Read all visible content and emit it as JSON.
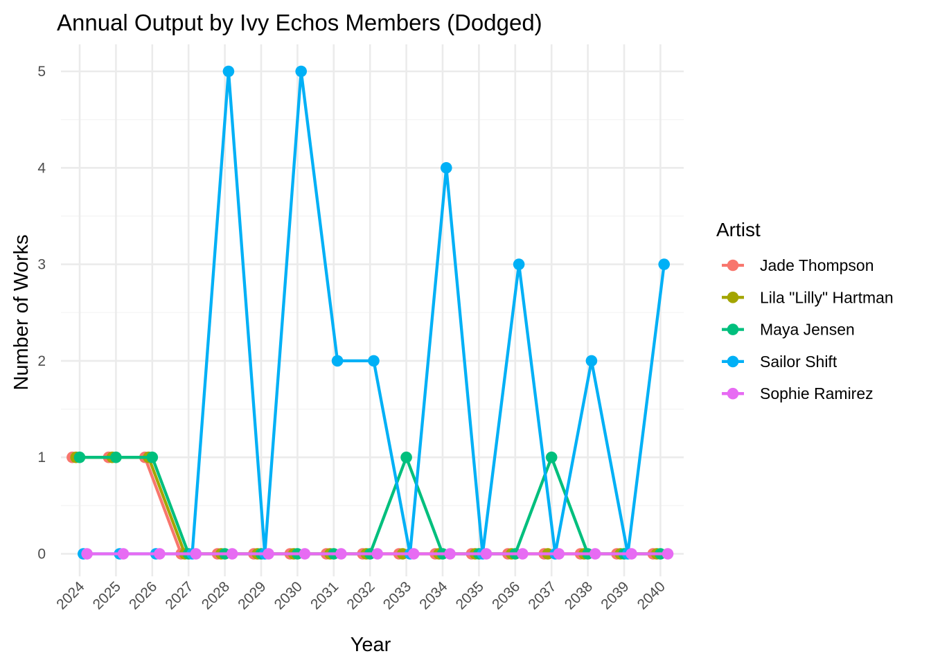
{
  "chart_data": {
    "type": "line",
    "title": "Annual Output by Ivy Echos Members (Dodged)",
    "xlabel": "Year",
    "ylabel": "Number of Works",
    "categories": [
      "2024",
      "2025",
      "2026",
      "2027",
      "2028",
      "2029",
      "2030",
      "2031",
      "2032",
      "2033",
      "2034",
      "2035",
      "2036",
      "2037",
      "2038",
      "2039",
      "2040"
    ],
    "yticks": [
      "0",
      "1",
      "2",
      "3",
      "4",
      "5"
    ],
    "ylim": [
      -0.3,
      5.2
    ],
    "grid": true,
    "legend": {
      "title": "Artist",
      "position": "right"
    },
    "series": [
      {
        "name": "Jade Thompson",
        "color": "#F8766D",
        "values": [
          1,
          1,
          1,
          0,
          0,
          0,
          0,
          0,
          0,
          0,
          0,
          0,
          0,
          0,
          0,
          0,
          0
        ]
      },
      {
        "name": "Lila \"Lilly\" Hartman",
        "color": "#A3A500",
        "values": [
          1,
          1,
          1,
          0,
          0,
          0,
          0,
          0,
          0,
          0,
          0,
          0,
          0,
          0,
          0,
          0,
          0
        ]
      },
      {
        "name": "Maya Jensen",
        "color": "#00BF7D",
        "values": [
          1,
          1,
          1,
          0,
          0,
          0,
          0,
          0,
          0,
          1,
          0,
          0,
          0,
          1,
          0,
          0,
          0
        ]
      },
      {
        "name": "Sailor Shift",
        "color": "#00B0F6",
        "values": [
          0,
          0,
          0,
          0,
          5,
          0,
          5,
          2,
          2,
          0,
          4,
          0,
          3,
          0,
          2,
          0,
          3
        ]
      },
      {
        "name": "Sophie Ramirez",
        "color": "#E76BF3",
        "values": [
          0,
          0,
          0,
          0,
          0,
          0,
          0,
          0,
          0,
          0,
          0,
          0,
          0,
          0,
          0,
          0,
          0
        ]
      }
    ]
  }
}
